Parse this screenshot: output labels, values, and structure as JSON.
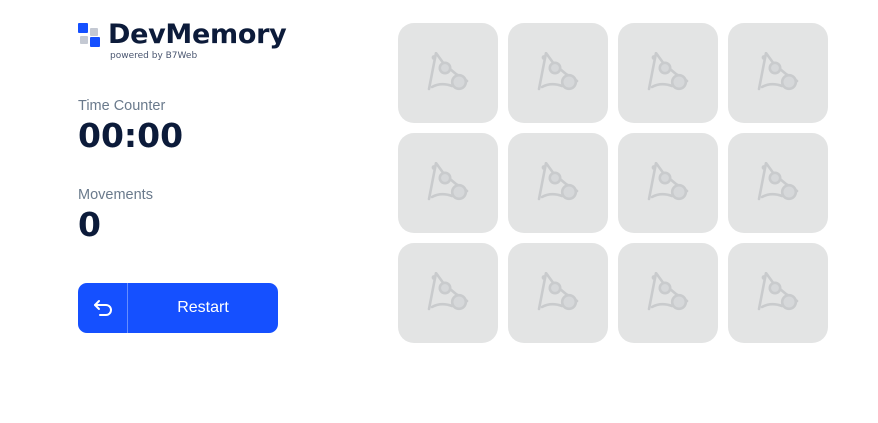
{
  "logo": {
    "title": "DevMemory",
    "subtitle": "powered by B7Web",
    "colors": [
      "#1550ff",
      "#1550ff",
      "#c4c9d3",
      "#1550ff"
    ]
  },
  "stats": {
    "time_label": "Time Counter",
    "time_value": "00:00",
    "moves_label": "Movements",
    "moves_value": "0"
  },
  "restart": {
    "label": "Restart",
    "icon": "undo-arrow-icon"
  },
  "board": {
    "rows": 3,
    "columns": 4,
    "card_state": "hidden",
    "card_icon": "card-back-logo-icon",
    "card_color": "#e3e4e4",
    "accent": "#1550ff"
  }
}
